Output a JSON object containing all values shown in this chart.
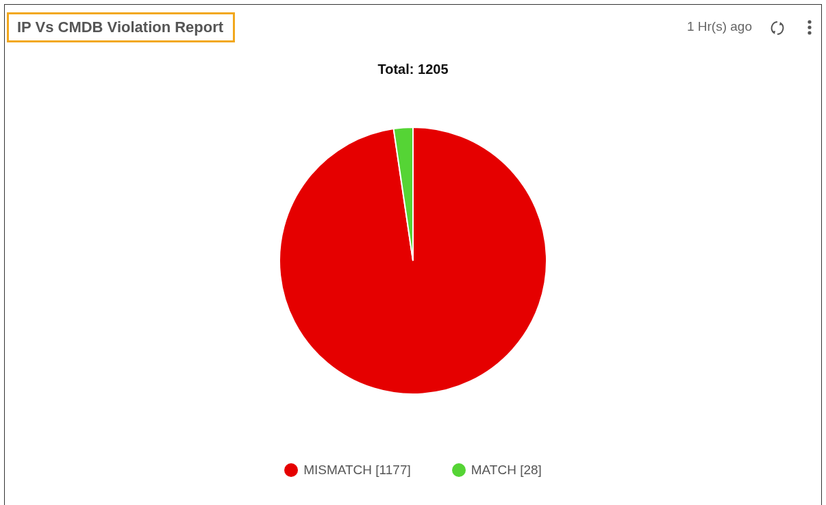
{
  "chart_data": {
    "type": "pie",
    "title": "IP Vs CMDB Violation Report",
    "subtitle": "Total: 1205",
    "annotations": [
      "1 Hr(s) ago"
    ],
    "categories": [
      "MISMATCH",
      "MATCH"
    ],
    "values": [
      1177,
      28
    ],
    "value_labels": [
      "[1177]",
      "[28]"
    ],
    "colors": [
      "#e50000",
      "#55d435"
    ],
    "legend": "bottom"
  }
}
